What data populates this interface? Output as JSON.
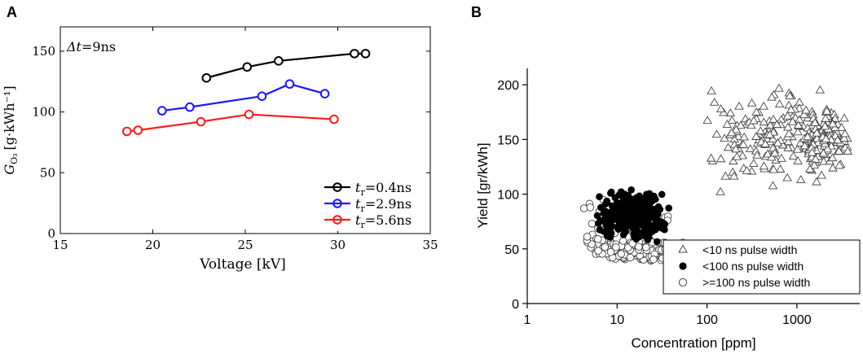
{
  "chart_data": [
    {
      "panel_label": "A",
      "type": "line",
      "title": "",
      "annotation": {
        "prefix": "Δt",
        "suffix": "=9ns"
      },
      "xlabel": "Voltage [kV]",
      "ylabel": {
        "main": "G",
        "sub": "O₃",
        "unit": "[g·kWh⁻¹]"
      },
      "xlim": [
        15,
        35
      ],
      "ylim": [
        0,
        170
      ],
      "xticks": [
        15,
        20,
        25,
        30,
        35
      ],
      "yticks": [
        0,
        50,
        100,
        150
      ],
      "legend_position": "bottom-right",
      "series": [
        {
          "name_main": "t",
          "name_sub": "r",
          "name_value": "=0.4ns",
          "color": "#000000",
          "x": [
            22.9,
            25.1,
            26.8,
            30.9,
            31.5
          ],
          "y": [
            128,
            137,
            142,
            148,
            148
          ]
        },
        {
          "name_main": "t",
          "name_sub": "r",
          "name_value": "=2.9ns",
          "color": "#1a1aff",
          "x": [
            20.5,
            22.0,
            25.9,
            27.4,
            29.3
          ],
          "y": [
            101,
            104,
            113,
            123,
            115
          ]
        },
        {
          "name_main": "t",
          "name_sub": "r",
          "name_value": "=5.6ns",
          "color": "#ff1a1a",
          "x": [
            18.6,
            19.2,
            22.6,
            25.2,
            29.8
          ],
          "y": [
            84,
            85,
            92,
            98,
            94
          ]
        }
      ]
    },
    {
      "panel_label": "B",
      "type": "scatter",
      "title": "",
      "xlabel": "Concentration [ppm]",
      "ylabel": "Yield [gr/kWh]",
      "xscale": "log",
      "xlim": [
        1,
        5000
      ],
      "ylim": [
        0,
        215
      ],
      "xticks": [
        1,
        10,
        100,
        1000
      ],
      "yticks": [
        0,
        50,
        100,
        150,
        200
      ],
      "legend_position": "bottom-right",
      "series": [
        {
          "name": "<10 ns pulse width",
          "marker": "triangle",
          "clusters": [
            {
              "xlog": [
                1.9,
                3.5
              ],
              "y": [
                100,
                205
              ],
              "n": 150
            },
            {
              "xlog": [
                3.0,
                3.6
              ],
              "y": [
                115,
                180
              ],
              "n": 120
            }
          ]
        },
        {
          "name": "<100 ns pulse width",
          "marker": "filled-circle",
          "clusters": [
            {
              "xlog": [
                0.75,
                1.6
              ],
              "y": [
                55,
                105
              ],
              "n": 230
            }
          ]
        },
        {
          "name": ">=100 ns pulse width",
          "marker": "open-circle",
          "clusters": [
            {
              "xlog": [
                0.6,
                1.6
              ],
              "y": [
                60,
                100
              ],
              "n": 60
            },
            {
              "xlog": [
                0.7,
                1.8
              ],
              "y": [
                38,
                58
              ],
              "n": 220
            },
            {
              "xlog": [
                0.6,
                0.9
              ],
              "y": [
                40,
                65
              ],
              "n": 12
            }
          ]
        }
      ]
    }
  ]
}
